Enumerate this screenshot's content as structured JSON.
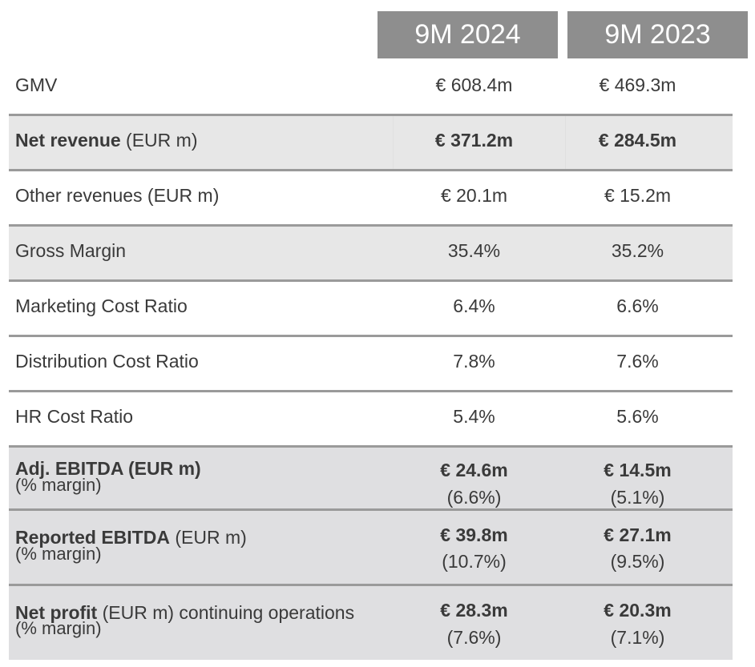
{
  "header": {
    "col1": "9M 2024",
    "col2": "9M 2023"
  },
  "rows": {
    "gmv": {
      "label": "GMV",
      "v1": "€ 608.4m",
      "v2": "€ 469.3m"
    },
    "net_revenue": {
      "label_bold": "Net revenue",
      "label_rest": " (EUR m)",
      "v1": "€ 371.2m",
      "v2": "€ 284.5m"
    },
    "other_revenues": {
      "label": "Other revenues (EUR m)",
      "v1": "€ 20.1m",
      "v2": "€ 15.2m"
    },
    "gross_margin": {
      "label": "Gross Margin",
      "v1": "35.4%",
      "v2": "35.2%"
    },
    "marketing": {
      "label": "Marketing Cost Ratio",
      "v1": "6.4%",
      "v2": "6.6%"
    },
    "distribution": {
      "label": "Distribution Cost Ratio",
      "v1": "7.8%",
      "v2": "7.6%"
    },
    "hr": {
      "label": "HR Cost Ratio",
      "v1": "5.4%",
      "v2": "5.6%"
    },
    "adj_ebitda": {
      "label_bold": "Adj. EBITDA (EUR m)",
      "sub": "(% margin)",
      "v1": "€ 24.6m",
      "v1_sub": "(6.6%)",
      "v2": "€ 14.5m",
      "v2_sub": "(5.1%)"
    },
    "reported_ebitda": {
      "label_bold": "Reported EBITDA",
      "label_rest": " (EUR m)",
      "sub": "(% margin)",
      "v1": "€ 39.8m",
      "v1_sub": "(10.7%)",
      "v2": "€ 27.1m",
      "v2_sub": "(9.5%)"
    },
    "net_profit": {
      "label_bold": "Net profit",
      "label_rest": " (EUR m) continuing operations",
      "sub": "(% margin)",
      "v1": "€ 28.3m",
      "v1_sub": "(7.6%)",
      "v2": "€ 20.3m",
      "v2_sub": "(7.1%)"
    }
  }
}
